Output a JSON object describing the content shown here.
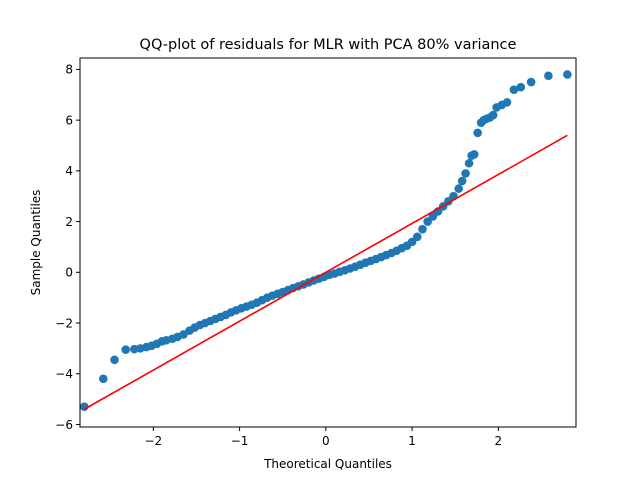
{
  "chart_data": {
    "type": "scatter",
    "title": "QQ-plot of residuals for MLR with PCA 80% variance",
    "xlabel": "Theoretical Quantiles",
    "ylabel": "Sample Quantiles",
    "xlim": [
      -2.85,
      2.9
    ],
    "ylim": [
      -6.1,
      8.45
    ],
    "xticks": [
      -2,
      -1,
      0,
      1,
      2
    ],
    "yticks": [
      -6,
      -4,
      -2,
      0,
      2,
      4,
      6,
      8
    ],
    "grid": false,
    "marker_color": "#1f77b4",
    "line_color": "#ff0000",
    "reference_line": {
      "x": [
        -2.8,
        2.8
      ],
      "y": [
        -5.4,
        5.4
      ]
    },
    "series": [
      {
        "x": [
          -2.8,
          -2.58,
          -2.45,
          -2.32,
          -2.22,
          -2.15,
          -2.08,
          -2.02,
          -1.96,
          -1.9,
          -1.85,
          -1.78,
          -1.72,
          -1.65,
          -1.58,
          -1.52,
          -1.46,
          -1.4,
          -1.34,
          -1.28,
          -1.22,
          -1.16,
          -1.1,
          -1.04,
          -0.98,
          -0.92,
          -0.86,
          -0.8,
          -0.74,
          -0.68,
          -0.62,
          -0.56,
          -0.5,
          -0.44,
          -0.38,
          -0.32,
          -0.26,
          -0.2,
          -0.14,
          -0.08,
          -0.02,
          0.04,
          0.1,
          0.16,
          0.22,
          0.28,
          0.34,
          0.4,
          0.46,
          0.52,
          0.58,
          0.64,
          0.7,
          0.76,
          0.82,
          0.88,
          0.94,
          1.0,
          1.06,
          1.12,
          1.18,
          1.24,
          1.3,
          1.36,
          1.42,
          1.48,
          1.54,
          1.58,
          1.62,
          1.66,
          1.69,
          1.72,
          1.76,
          1.8,
          1.83,
          1.86,
          1.9,
          1.94,
          1.98,
          2.04,
          2.1,
          2.18,
          2.26,
          2.38,
          2.58,
          2.8
        ],
        "y": [
          -5.3,
          -4.2,
          -3.45,
          -3.05,
          -3.03,
          -3.0,
          -2.95,
          -2.9,
          -2.82,
          -2.72,
          -2.68,
          -2.62,
          -2.55,
          -2.45,
          -2.3,
          -2.18,
          -2.08,
          -2.0,
          -1.92,
          -1.84,
          -1.76,
          -1.68,
          -1.58,
          -1.5,
          -1.42,
          -1.35,
          -1.28,
          -1.2,
          -1.1,
          -1.0,
          -0.92,
          -0.85,
          -0.78,
          -0.7,
          -0.62,
          -0.55,
          -0.48,
          -0.4,
          -0.32,
          -0.25,
          -0.18,
          -0.1,
          -0.05,
          0.02,
          0.08,
          0.15,
          0.22,
          0.3,
          0.38,
          0.45,
          0.52,
          0.6,
          0.68,
          0.76,
          0.85,
          0.95,
          1.05,
          1.2,
          1.4,
          1.7,
          2.0,
          2.2,
          2.4,
          2.6,
          2.8,
          3.0,
          3.3,
          3.6,
          3.9,
          4.3,
          4.6,
          4.65,
          5.5,
          5.9,
          6.0,
          6.05,
          6.1,
          6.2,
          6.5,
          6.6,
          6.7,
          7.2,
          7.3,
          7.5,
          7.75,
          7.8
        ]
      }
    ]
  }
}
